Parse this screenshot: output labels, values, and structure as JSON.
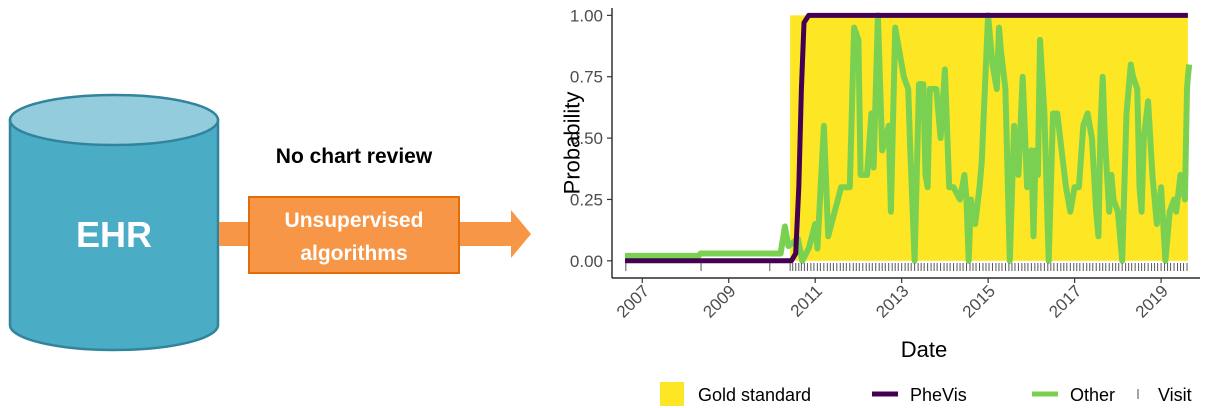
{
  "diagram": {
    "database_label": "EHR",
    "review_note": "No chart review",
    "process_box": {
      "line1": "Unsupervised",
      "line2": "algorithms"
    },
    "colors": {
      "cylinder": "#4bacc6",
      "cylinder_top": "#93cddd",
      "cylinder_stroke": "#31849b",
      "box": "#f79646",
      "box_stroke": "#e36c09",
      "arrow": "#f79646"
    }
  },
  "chart_data": {
    "type": "line",
    "title": "",
    "xlabel": "Date",
    "ylabel": "Probability",
    "xlim": [
      2006.3,
      2019.9
    ],
    "ylim": [
      -0.07,
      1.03
    ],
    "x_ticks": [
      "2007",
      "2009",
      "2011",
      "2013",
      "2015",
      "2017",
      "2019"
    ],
    "y_ticks": [
      "0.00",
      "0.25",
      "0.50",
      "0.75",
      "1.00"
    ],
    "grid": false,
    "legend_position": "bottom",
    "legend": [
      {
        "name": "Gold standard",
        "kind": "fill",
        "color": "#fde725"
      },
      {
        "name": "PheVis",
        "kind": "line",
        "color": "#440154"
      },
      {
        "name": "Other",
        "kind": "line",
        "color": "#7ad151"
      },
      {
        "name": "Visit",
        "kind": "tick",
        "color": "#666666"
      }
    ],
    "gold_standard": {
      "start": 2010.42,
      "end": 2019.62,
      "value": 1.0
    },
    "series": [
      {
        "name": "PheVis",
        "color": "#440154",
        "points": [
          [
            2006.6,
            0.0
          ],
          [
            2010.45,
            0.0
          ],
          [
            2010.55,
            0.03
          ],
          [
            2010.62,
            0.3
          ],
          [
            2010.68,
            0.7
          ],
          [
            2010.74,
            0.97
          ],
          [
            2010.85,
            1.0
          ],
          [
            2019.62,
            1.0
          ]
        ]
      },
      {
        "name": "Other",
        "color": "#7ad151",
        "points": [
          [
            2006.6,
            0.02
          ],
          [
            2008.3,
            0.02
          ],
          [
            2008.35,
            0.03
          ],
          [
            2010.2,
            0.03
          ],
          [
            2010.3,
            0.14
          ],
          [
            2010.38,
            0.06
          ],
          [
            2010.6,
            0.09
          ],
          [
            2010.7,
            0.0
          ],
          [
            2010.85,
            0.05
          ],
          [
            2011.0,
            0.15
          ],
          [
            2011.05,
            0.05
          ],
          [
            2011.2,
            0.55
          ],
          [
            2011.3,
            0.1
          ],
          [
            2011.6,
            0.3
          ],
          [
            2011.8,
            0.3
          ],
          [
            2011.9,
            0.95
          ],
          [
            2012.0,
            0.9
          ],
          [
            2012.05,
            0.35
          ],
          [
            2012.2,
            0.35
          ],
          [
            2012.3,
            0.6
          ],
          [
            2012.35,
            0.38
          ],
          [
            2012.45,
            1.0
          ],
          [
            2012.55,
            0.45
          ],
          [
            2012.7,
            0.55
          ],
          [
            2012.75,
            0.2
          ],
          [
            2012.85,
            0.95
          ],
          [
            2012.95,
            0.85
          ],
          [
            2013.05,
            0.75
          ],
          [
            2013.15,
            0.7
          ],
          [
            2013.2,
            0.45
          ],
          [
            2013.3,
            0.0
          ],
          [
            2013.4,
            0.72
          ],
          [
            2013.5,
            0.72
          ],
          [
            2013.55,
            0.35
          ],
          [
            2013.6,
            0.3
          ],
          [
            2013.65,
            0.7
          ],
          [
            2013.8,
            0.7
          ],
          [
            2013.9,
            0.5
          ],
          [
            2014.0,
            0.78
          ],
          [
            2014.1,
            0.3
          ],
          [
            2014.2,
            0.3
          ],
          [
            2014.35,
            0.25
          ],
          [
            2014.45,
            0.35
          ],
          [
            2014.5,
            0.25
          ],
          [
            2014.55,
            0.0
          ],
          [
            2014.6,
            0.25
          ],
          [
            2014.7,
            0.15
          ],
          [
            2014.8,
            0.3
          ],
          [
            2014.85,
            0.4
          ],
          [
            2014.9,
            0.6
          ],
          [
            2015.0,
            1.0
          ],
          [
            2015.1,
            0.8
          ],
          [
            2015.2,
            0.7
          ],
          [
            2015.25,
            0.95
          ],
          [
            2015.3,
            0.85
          ],
          [
            2015.4,
            0.7
          ],
          [
            2015.5,
            0.0
          ],
          [
            2015.6,
            0.55
          ],
          [
            2015.7,
            0.35
          ],
          [
            2015.8,
            0.75
          ],
          [
            2015.9,
            0.3
          ],
          [
            2016.0,
            0.45
          ],
          [
            2016.05,
            0.1
          ],
          [
            2016.1,
            0.45
          ],
          [
            2016.15,
            0.35
          ],
          [
            2016.2,
            0.9
          ],
          [
            2016.3,
            0.6
          ],
          [
            2016.4,
            0.0
          ],
          [
            2016.5,
            0.6
          ],
          [
            2016.6,
            0.6
          ],
          [
            2016.7,
            0.45
          ],
          [
            2016.8,
            0.3
          ],
          [
            2016.9,
            0.2
          ],
          [
            2017.0,
            0.3
          ],
          [
            2017.1,
            0.3
          ],
          [
            2017.2,
            0.55
          ],
          [
            2017.3,
            0.6
          ],
          [
            2017.4,
            0.5
          ],
          [
            2017.5,
            0.2
          ],
          [
            2017.55,
            0.1
          ],
          [
            2017.6,
            0.55
          ],
          [
            2017.65,
            0.75
          ],
          [
            2017.7,
            0.5
          ],
          [
            2017.8,
            0.2
          ],
          [
            2017.85,
            0.35
          ],
          [
            2017.9,
            0.25
          ],
          [
            2018.0,
            0.2
          ],
          [
            2018.1,
            0.0
          ],
          [
            2018.2,
            0.6
          ],
          [
            2018.3,
            0.8
          ],
          [
            2018.35,
            0.75
          ],
          [
            2018.45,
            0.7
          ],
          [
            2018.5,
            0.3
          ],
          [
            2018.55,
            0.2
          ],
          [
            2018.6,
            0.5
          ],
          [
            2018.7,
            0.65
          ],
          [
            2018.8,
            0.35
          ],
          [
            2018.9,
            0.15
          ],
          [
            2019.0,
            0.3
          ],
          [
            2019.1,
            0.0
          ],
          [
            2019.2,
            0.2
          ],
          [
            2019.3,
            0.25
          ],
          [
            2019.35,
            0.2
          ],
          [
            2019.45,
            0.35
          ],
          [
            2019.55,
            0.25
          ],
          [
            2019.6,
            0.7
          ],
          [
            2019.62,
            0.75
          ],
          [
            2019.65,
            0.8
          ]
        ]
      }
    ],
    "visits": [
      2006.62,
      2008.36,
      2009.95,
      2010.42,
      2010.48,
      2010.55,
      2010.62,
      2010.68,
      2010.75,
      2010.82,
      2010.9,
      2010.97,
      2011.05,
      2011.12,
      2011.2,
      2011.28,
      2011.35,
      2011.42,
      2011.5,
      2011.58,
      2011.65,
      2011.72,
      2011.8,
      2011.88,
      2011.95,
      2012.02,
      2012.1,
      2012.18,
      2012.25,
      2012.32,
      2012.4,
      2012.48,
      2012.55,
      2012.62,
      2012.7,
      2012.78,
      2012.85,
      2012.92,
      2013.0,
      2013.08,
      2013.15,
      2013.22,
      2013.3,
      2013.38,
      2013.45,
      2013.52,
      2013.6,
      2013.68,
      2013.75,
      2013.82,
      2013.9,
      2013.98,
      2014.05,
      2014.12,
      2014.2,
      2014.28,
      2014.35,
      2014.42,
      2014.5,
      2014.58,
      2014.65,
      2014.72,
      2014.8,
      2014.88,
      2014.95,
      2015.02,
      2015.1,
      2015.18,
      2015.25,
      2015.32,
      2015.4,
      2015.48,
      2015.55,
      2015.62,
      2015.7,
      2015.78,
      2015.85,
      2015.92,
      2016.0,
      2016.08,
      2016.15,
      2016.22,
      2016.3,
      2016.38,
      2016.45,
      2016.52,
      2016.6,
      2016.68,
      2016.75,
      2016.82,
      2016.9,
      2016.98,
      2017.05,
      2017.12,
      2017.2,
      2017.28,
      2017.35,
      2017.42,
      2017.5,
      2017.58,
      2017.65,
      2017.72,
      2017.8,
      2017.88,
      2017.95,
      2018.02,
      2018.1,
      2018.18,
      2018.25,
      2018.32,
      2018.4,
      2018.48,
      2018.55,
      2018.62,
      2018.7,
      2018.78,
      2018.85,
      2018.92,
      2019.0,
      2019.08,
      2019.15,
      2019.22,
      2019.3,
      2019.38,
      2019.45,
      2019.52,
      2019.6
    ]
  }
}
